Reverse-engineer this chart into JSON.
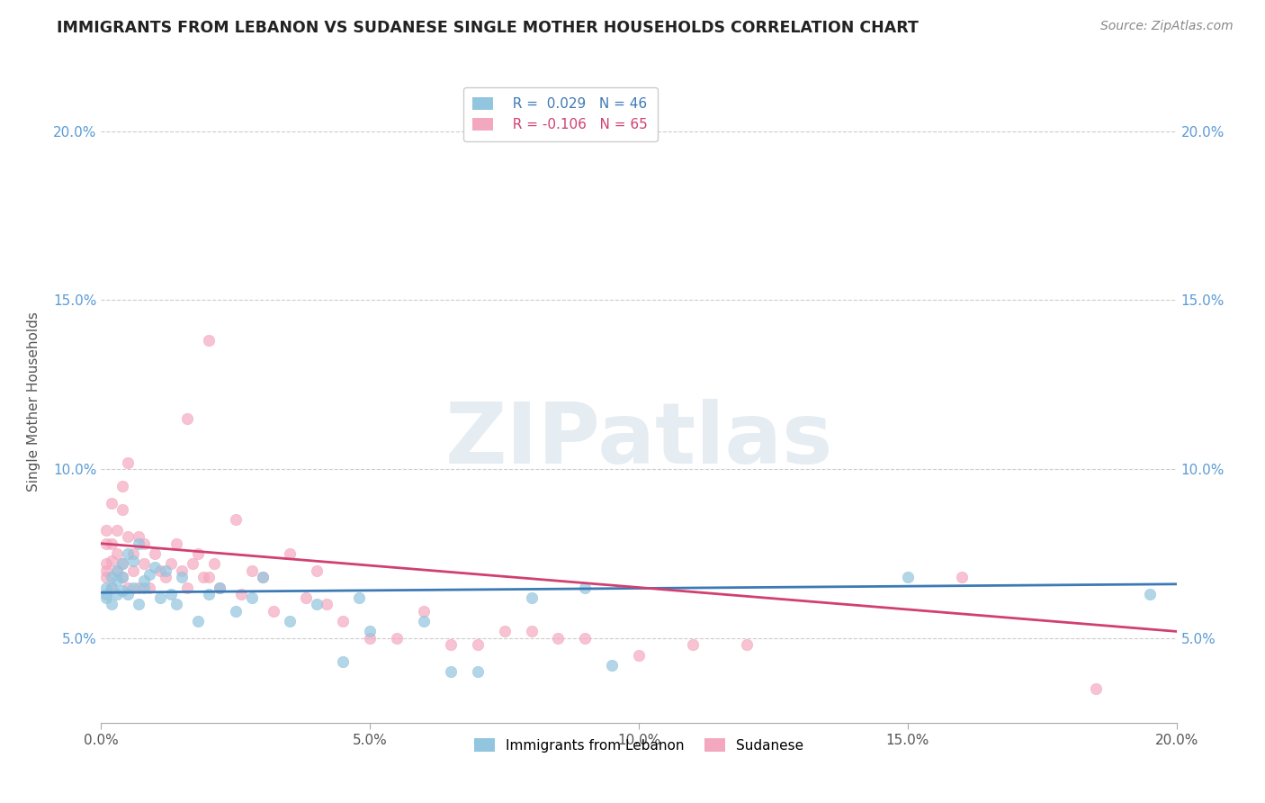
{
  "title": "IMMIGRANTS FROM LEBANON VS SUDANESE SINGLE MOTHER HOUSEHOLDS CORRELATION CHART",
  "source": "Source: ZipAtlas.com",
  "ylabel": "Single Mother Households",
  "xlim": [
    0.0,
    0.2
  ],
  "ylim": [
    0.025,
    0.215
  ],
  "x_ticks": [
    0.0,
    0.05,
    0.1,
    0.15,
    0.2
  ],
  "x_tick_labels": [
    "0.0%",
    "5.0%",
    "10.0%",
    "15.0%",
    "20.0%"
  ],
  "y_ticks": [
    0.05,
    0.1,
    0.15,
    0.2
  ],
  "y_tick_labels": [
    "5.0%",
    "10.0%",
    "15.0%",
    "20.0%"
  ],
  "lebanon_R": 0.029,
  "lebanon_N": 46,
  "sudanese_R": -0.106,
  "sudanese_N": 65,
  "lebanon_color": "#92c5de",
  "sudanese_color": "#f4a8c0",
  "trend_lebanon_color": "#3d7ab5",
  "trend_sudanese_color": "#d04070",
  "watermark": "ZIPatlas",
  "lebanon_x": [
    0.001,
    0.001,
    0.001,
    0.002,
    0.002,
    0.002,
    0.003,
    0.003,
    0.003,
    0.004,
    0.004,
    0.004,
    0.005,
    0.005,
    0.006,
    0.006,
    0.007,
    0.007,
    0.008,
    0.008,
    0.009,
    0.01,
    0.011,
    0.012,
    0.013,
    0.014,
    0.015,
    0.018,
    0.02,
    0.022,
    0.025,
    0.028,
    0.03,
    0.035,
    0.04,
    0.045,
    0.048,
    0.05,
    0.06,
    0.065,
    0.07,
    0.08,
    0.09,
    0.095,
    0.15,
    0.195
  ],
  "lebanon_y": [
    0.065,
    0.063,
    0.062,
    0.068,
    0.065,
    0.06,
    0.07,
    0.067,
    0.063,
    0.072,
    0.068,
    0.064,
    0.075,
    0.063,
    0.073,
    0.065,
    0.078,
    0.06,
    0.065,
    0.067,
    0.069,
    0.071,
    0.062,
    0.07,
    0.063,
    0.06,
    0.068,
    0.055,
    0.063,
    0.065,
    0.058,
    0.062,
    0.068,
    0.055,
    0.06,
    0.043,
    0.062,
    0.052,
    0.055,
    0.04,
    0.04,
    0.062,
    0.065,
    0.042,
    0.068,
    0.063
  ],
  "sudanese_x": [
    0.001,
    0.001,
    0.001,
    0.001,
    0.001,
    0.002,
    0.002,
    0.002,
    0.002,
    0.003,
    0.003,
    0.003,
    0.004,
    0.004,
    0.004,
    0.004,
    0.005,
    0.005,
    0.005,
    0.006,
    0.006,
    0.007,
    0.007,
    0.008,
    0.008,
    0.009,
    0.01,
    0.011,
    0.012,
    0.013,
    0.014,
    0.015,
    0.016,
    0.017,
    0.018,
    0.019,
    0.02,
    0.021,
    0.022,
    0.025,
    0.026,
    0.028,
    0.03,
    0.032,
    0.035,
    0.038,
    0.04,
    0.042,
    0.045,
    0.05,
    0.055,
    0.06,
    0.065,
    0.07,
    0.075,
    0.08,
    0.085,
    0.09,
    0.1,
    0.11,
    0.12,
    0.16,
    0.185,
    0.016,
    0.02
  ],
  "sudanese_y": [
    0.068,
    0.07,
    0.072,
    0.078,
    0.082,
    0.065,
    0.073,
    0.078,
    0.09,
    0.07,
    0.075,
    0.082,
    0.068,
    0.072,
    0.088,
    0.095,
    0.065,
    0.08,
    0.102,
    0.075,
    0.07,
    0.065,
    0.08,
    0.072,
    0.078,
    0.065,
    0.075,
    0.07,
    0.068,
    0.072,
    0.078,
    0.07,
    0.065,
    0.072,
    0.075,
    0.068,
    0.068,
    0.072,
    0.065,
    0.085,
    0.063,
    0.07,
    0.068,
    0.058,
    0.075,
    0.062,
    0.07,
    0.06,
    0.055,
    0.05,
    0.05,
    0.058,
    0.048,
    0.048,
    0.052,
    0.052,
    0.05,
    0.05,
    0.045,
    0.048,
    0.048,
    0.068,
    0.035,
    0.115,
    0.138
  ],
  "trend_leb_x0": 0.0,
  "trend_leb_x1": 0.2,
  "trend_leb_y0": 0.0635,
  "trend_leb_y1": 0.066,
  "trend_sud_x0": 0.0,
  "trend_sud_x1": 0.2,
  "trend_sud_y0": 0.078,
  "trend_sud_y1": 0.052
}
